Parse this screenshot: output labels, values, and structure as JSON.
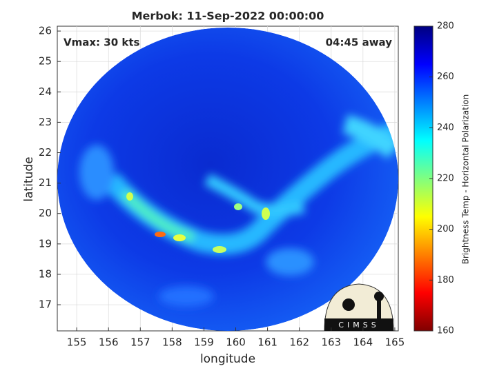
{
  "chart_data": {
    "type": "image",
    "title": "Merbok: 11-Sep-2022 00:00:00",
    "annotations": [
      "Vmax: 30 kts",
      "04:45 away"
    ],
    "xlabel": "longitude",
    "ylabel": "latitude",
    "xlim": [
      154.39,
      165.11
    ],
    "xticks": [
      155,
      156,
      157,
      158,
      159,
      160,
      161,
      162,
      163,
      164,
      165
    ],
    "ylim": [
      16.14,
      26.16
    ],
    "yticks": [
      17,
      18,
      19,
      20,
      21,
      22,
      23,
      24,
      25,
      26
    ],
    "grid": true,
    "colorbar": {
      "label": "Brightness Temp - Horizontal Polarization",
      "lim": [
        160,
        280
      ],
      "ticks": [
        160,
        180,
        200,
        220,
        240,
        260,
        280
      ],
      "colors": [
        "#800000",
        "#ff0000",
        "#ff8000",
        "#ffff00",
        "#80ff80",
        "#00ffff",
        "#0080ff",
        "#0000ff",
        "#000080"
      ]
    },
    "logo": "CIMSS"
  }
}
